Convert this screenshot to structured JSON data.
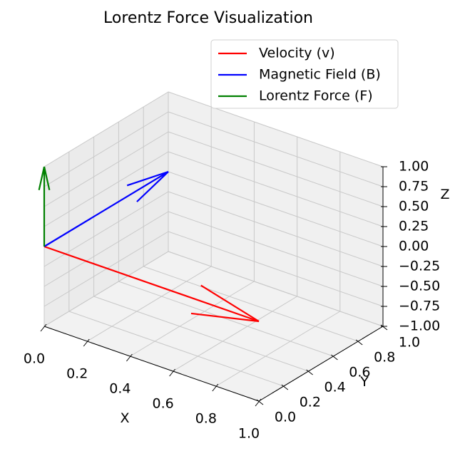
{
  "chart_data": {
    "type": "quiver3d",
    "title": "Lorentz Force Visualization",
    "xlabel": "X",
    "ylabel": "Y",
    "zlabel": "Z",
    "xlim": [
      0,
      1
    ],
    "ylim": [
      0,
      1
    ],
    "zlim": [
      -1,
      1
    ],
    "xticks": [
      "0.0",
      "0.2",
      "0.4",
      "0.6",
      "0.8",
      "1.0"
    ],
    "yticks": [
      "0.0",
      "0.2",
      "0.4",
      "0.6",
      "0.8",
      "1.0"
    ],
    "zticks": [
      "−1.00",
      "−0.75",
      "−0.50",
      "−0.25",
      "0.00",
      "0.25",
      "0.50",
      "0.75",
      "1.00"
    ],
    "grid": true,
    "legend_position": "top-right",
    "series": [
      {
        "name": "Velocity (v)",
        "color": "#ff0000",
        "origin": [
          0,
          0,
          0
        ],
        "vector": [
          1,
          0,
          0
        ]
      },
      {
        "name": "Magnetic Field (B)",
        "color": "#0000ff",
        "origin": [
          0,
          0,
          0
        ],
        "vector": [
          0,
          1,
          0
        ]
      },
      {
        "name": "Lorentz Force (F)",
        "color": "#008000",
        "origin": [
          0,
          0,
          0
        ],
        "vector": [
          0,
          0,
          1
        ]
      }
    ]
  }
}
